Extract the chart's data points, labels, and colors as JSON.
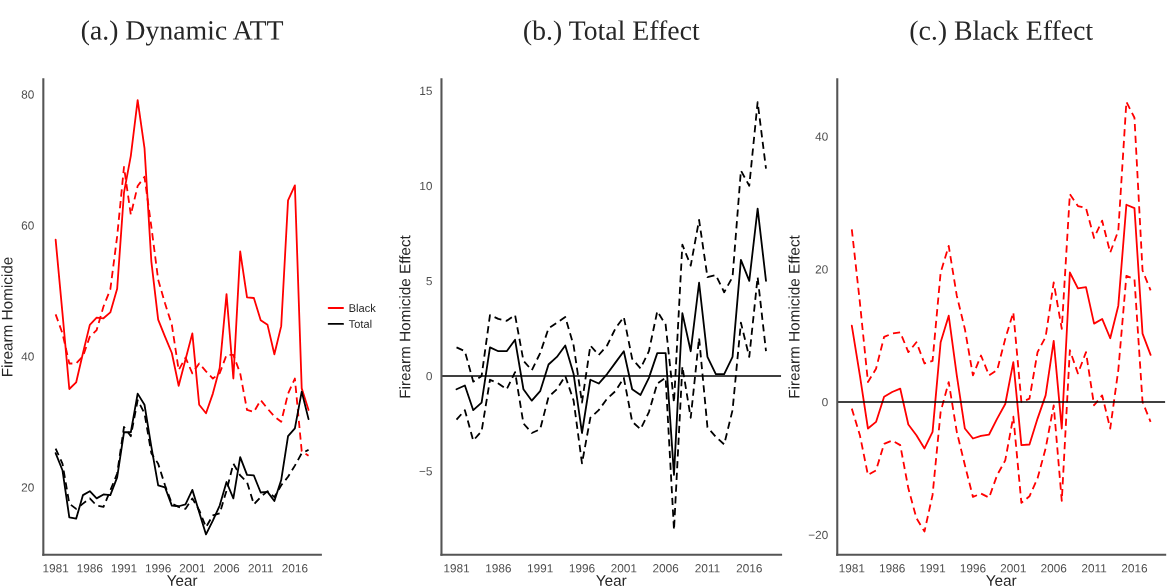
{
  "chart_data": [
    {
      "type": "line",
      "title": "(a.) Dynamic ATT",
      "xlabel": "Year",
      "ylabel": "Firearm Homicide",
      "x": [
        1981,
        1982,
        1983,
        1984,
        1985,
        1986,
        1987,
        1988,
        1989,
        1990,
        1991,
        1992,
        1993,
        1994,
        1995,
        1996,
        1997,
        1998,
        1999,
        2000,
        2001,
        2002,
        2003,
        2004,
        2005,
        2006,
        2007,
        2008,
        2009,
        2010,
        2011,
        2012,
        2013,
        2014,
        2015,
        2016,
        2017,
        2018
      ],
      "xlim": [
        1979.2,
        2019.8
      ],
      "xticks": [
        1981,
        1986,
        1991,
        1996,
        2001,
        2006,
        2011,
        2016
      ],
      "ylim": [
        9.7,
        82.3
      ],
      "yticks": [
        20,
        40,
        60,
        80
      ],
      "grid": false,
      "legend": "right",
      "series": [
        {
          "name": "Black",
          "color": "#ff0000",
          "line_style": "solid",
          "values": [
            57.8,
            46.6,
            35.0,
            36.0,
            40.5,
            44.8,
            45.9,
            45.8,
            46.7,
            50.3,
            65.0,
            70.6,
            79.1,
            71.8,
            54.5,
            45.6,
            43.0,
            40.5,
            35.5,
            39.5,
            43.5,
            32.6,
            31.3,
            34.3,
            38.2,
            49.5,
            36.6,
            56.0,
            49.0,
            48.9,
            45.5,
            44.8,
            40.3,
            44.6,
            63.8,
            66.1,
            35.1,
            31.8
          ]
        },
        {
          "color": "#ff0000",
          "line_style": "dashed",
          "values": [
            46.4,
            43.5,
            38.9,
            38.9,
            40.0,
            43.0,
            44.0,
            47.6,
            50.2,
            58.3,
            68.9,
            61.6,
            66.0,
            67.4,
            59.8,
            51.7,
            48.1,
            44.8,
            37.9,
            39.8,
            37.4,
            38.9,
            37.7,
            36.6,
            37.4,
            40.2,
            40.2,
            37.4,
            31.8,
            31.5,
            33.3,
            32.0,
            30.8,
            30.0,
            34.3,
            36.6,
            25.5,
            24.8
          ]
        },
        {
          "name": "Total",
          "color": "#000000",
          "line_style": "solid",
          "values": [
            25.2,
            22.6,
            15.4,
            15.2,
            18.8,
            19.4,
            18.3,
            18.9,
            18.8,
            21.5,
            28.4,
            28.4,
            34.3,
            32.6,
            26.2,
            20.3,
            20.0,
            17.2,
            17.1,
            17.4,
            19.6,
            16.2,
            12.8,
            14.9,
            17.2,
            20.8,
            18.3,
            24.6,
            21.9,
            21.8,
            19.2,
            19.3,
            17.9,
            21.1,
            27.8,
            29.0,
            34.6,
            30.4
          ]
        },
        {
          "color": "#000000",
          "line_style": "dashed",
          "values": [
            25.9,
            23.6,
            17.5,
            16.7,
            17.5,
            18.3,
            17.2,
            17.0,
            19.5,
            22.1,
            29.2,
            27.8,
            33.3,
            31.3,
            25.2,
            23.6,
            20.3,
            17.5,
            17.0,
            16.7,
            18.3,
            16.5,
            13.9,
            15.7,
            16.0,
            19.5,
            23.6,
            21.8,
            20.8,
            17.4,
            18.5,
            19.4,
            18.5,
            20.3,
            21.6,
            23.3,
            25.2,
            25.7
          ]
        }
      ]
    },
    {
      "type": "line",
      "title": "(b.) Total Effect",
      "xlabel": "Year",
      "ylabel": "Firearm Homicide Effect",
      "x": [
        1981,
        1982,
        1983,
        1984,
        1985,
        1986,
        1987,
        1988,
        1989,
        1990,
        1991,
        1992,
        1993,
        1994,
        1995,
        1996,
        1997,
        1998,
        1999,
        2000,
        2001,
        2002,
        2003,
        2004,
        2005,
        2006,
        2007,
        2008,
        2009,
        2010,
        2011,
        2012,
        2013,
        2014,
        2015,
        2016,
        2017,
        2018
      ],
      "xlim": [
        1979.2,
        2019.8
      ],
      "xticks": [
        1981,
        1986,
        1991,
        1996,
        2001,
        2006,
        2011,
        2016
      ],
      "ylim": [
        -9.4,
        15.6
      ],
      "yticks": [
        {
          "value": -5,
          "label": "−5"
        },
        0,
        5,
        10,
        15
      ],
      "grid": false,
      "ref_lines": [
        {
          "axis": "y",
          "value": 0,
          "color": "#000000"
        }
      ],
      "series": [
        {
          "color": "#000000",
          "line_style": "solid",
          "values": [
            -0.7,
            -0.5,
            -1.8,
            -1.4,
            1.5,
            1.3,
            1.3,
            1.9,
            -0.7,
            -1.3,
            -0.8,
            0.6,
            1.0,
            1.6,
            0.1,
            -3.0,
            -0.2,
            -0.4,
            0.1,
            0.7,
            1.3,
            -0.7,
            -1.0,
            -0.1,
            1.2,
            1.2,
            -5.2,
            3.3,
            1.3,
            4.9,
            1.0,
            0.1,
            0.1,
            1.0,
            6.1,
            5.0,
            8.8,
            5.0
          ]
        },
        {
          "color": "#000000",
          "line_style": "dashed",
          "values": [
            1.5,
            1.3,
            -0.3,
            0.0,
            3.2,
            3.0,
            2.9,
            3.2,
            0.8,
            0.3,
            1.2,
            2.5,
            2.8,
            3.1,
            1.6,
            -1.4,
            1.6,
            1.1,
            1.6,
            2.5,
            3.1,
            0.9,
            0.4,
            1.3,
            3.4,
            2.7,
            -1.4,
            6.9,
            5.8,
            8.2,
            5.2,
            5.3,
            4.4,
            5.2,
            10.8,
            10.0,
            14.4,
            10.9
          ]
        },
        {
          "color": "#000000",
          "line_style": "dashed",
          "values": [
            -2.3,
            -1.8,
            -3.4,
            -2.9,
            -0.2,
            -0.4,
            -0.7,
            0.2,
            -2.5,
            -3.0,
            -2.8,
            -1.1,
            -0.7,
            0.0,
            -1.3,
            -4.6,
            -2.2,
            -1.8,
            -1.2,
            -0.8,
            -0.1,
            -2.4,
            -2.8,
            -1.9,
            -0.4,
            -0.1,
            -8.1,
            0.5,
            -2.2,
            2.0,
            -2.7,
            -3.2,
            -3.6,
            -1.8,
            2.8,
            1.0,
            5.2,
            1.3
          ]
        }
      ]
    },
    {
      "type": "line",
      "title": "(c.) Black Effect",
      "xlabel": "Year",
      "ylabel": "Firearm Homicide Effect",
      "x": [
        1981,
        1982,
        1983,
        1984,
        1985,
        1986,
        1987,
        1988,
        1989,
        1990,
        1991,
        1992,
        1993,
        1994,
        1995,
        1996,
        1997,
        1998,
        1999,
        2000,
        2001,
        2002,
        2003,
        2004,
        2005,
        2006,
        2007,
        2008,
        2009,
        2010,
        2011,
        2012,
        2013,
        2014,
        2015,
        2016,
        2017,
        2018
      ],
      "xlim": [
        1979.2,
        2019.8
      ],
      "xticks": [
        1981,
        1986,
        1991,
        1996,
        2001,
        2006,
        2011,
        2016
      ],
      "ylim": [
        -23.0,
        48.6
      ],
      "yticks": [
        {
          "value": -20,
          "label": "−20"
        },
        0,
        20,
        40
      ],
      "grid": false,
      "ref_lines": [
        {
          "axis": "y",
          "value": 0,
          "color": "#000000"
        }
      ],
      "series": [
        {
          "color": "#ff0000",
          "line_style": "solid",
          "values": [
            11.5,
            4.0,
            -4.0,
            -3.0,
            0.8,
            1.5,
            2.0,
            -3.4,
            -5.0,
            -7.0,
            -4.5,
            9.0,
            13.0,
            4.0,
            -4.0,
            -5.5,
            -5.1,
            -4.9,
            -2.5,
            -0.3,
            6.0,
            -6.5,
            -6.4,
            -2.5,
            1.0,
            9.2,
            -4.0,
            19.5,
            17.1,
            17.3,
            11.8,
            12.5,
            9.6,
            14.5,
            29.7,
            29.2,
            10.3,
            7.1
          ]
        },
        {
          "color": "#ff0000",
          "line_style": "dashed",
          "values": [
            26.0,
            15.0,
            3.0,
            5.0,
            9.8,
            10.3,
            10.5,
            7.5,
            9.0,
            5.8,
            6.2,
            19.5,
            23.5,
            16.0,
            11.0,
            4.0,
            7.0,
            4.0,
            4.8,
            9.5,
            13.5,
            0.0,
            0.5,
            7.5,
            9.8,
            18.0,
            11.0,
            31.3,
            29.5,
            29.2,
            24.7,
            27.3,
            22.5,
            25.8,
            45.2,
            42.8,
            19.8,
            16.8
          ]
        },
        {
          "color": "#ff0000",
          "line_style": "dashed",
          "values": [
            -1.0,
            -5.0,
            -11.0,
            -10.3,
            -6.3,
            -5.8,
            -6.5,
            -13.0,
            -17.5,
            -19.5,
            -14.0,
            -1.5,
            3.0,
            -4.5,
            -9.5,
            -14.3,
            -13.8,
            -14.4,
            -11.0,
            -8.8,
            -2.2,
            -15.2,
            -14.2,
            -11.5,
            -7.0,
            -0.5,
            -14.9,
            7.8,
            4.3,
            7.5,
            -0.5,
            1.0,
            -4.0,
            4.8,
            19.0,
            18.5,
            0.0,
            -3.0
          ]
        }
      ]
    }
  ]
}
